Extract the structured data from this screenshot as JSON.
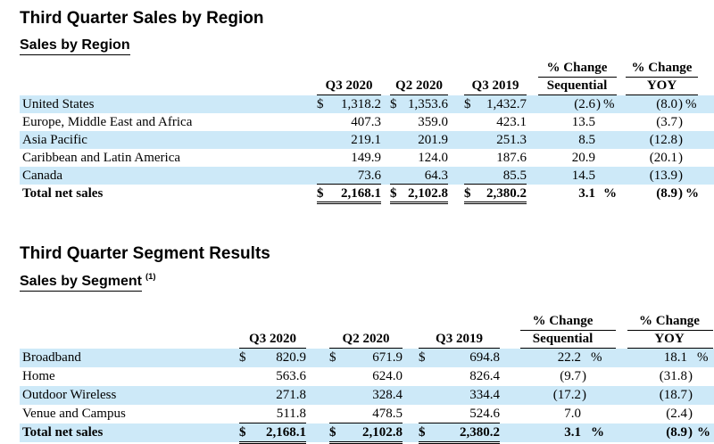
{
  "colors": {
    "stripe": "#cde9f8"
  },
  "sections": [
    {
      "title": "Third Quarter Sales by Region",
      "subtitle": "Sales by Region",
      "subtitle_note": "",
      "header": {
        "pct_change": "% Change",
        "q3_2020": "Q3 2020",
        "q2_2020": "Q2 2020",
        "q3_2019": "Q3 2019",
        "sequential": "Sequential",
        "yoy": "YOY"
      },
      "rows": [
        {
          "label": "United States",
          "stripe": true,
          "bold": false,
          "rule": "",
          "cells": [
            {
              "d": "$",
              "v": "1,318.2"
            },
            {
              "d": "$",
              "v": "1,353.6"
            },
            {
              "d": "$",
              "v": "1,432.7"
            }
          ],
          "seq": {
            "v": "(2.6",
            "p": ")",
            "s": "%"
          },
          "yoy": {
            "v": "(8.0",
            "p": ")",
            "s": "%"
          }
        },
        {
          "label": "Europe, Middle East and Africa",
          "stripe": false,
          "bold": false,
          "rule": "",
          "cells": [
            {
              "d": "",
              "v": "407.3"
            },
            {
              "d": "",
              "v": "359.0"
            },
            {
              "d": "",
              "v": "423.1"
            }
          ],
          "seq": {
            "v": "13.5",
            "p": "",
            "s": ""
          },
          "yoy": {
            "v": "(3.7",
            "p": ")",
            "s": ""
          }
        },
        {
          "label": "Asia Pacific",
          "stripe": true,
          "bold": false,
          "rule": "",
          "cells": [
            {
              "d": "",
              "v": "219.1"
            },
            {
              "d": "",
              "v": "201.9"
            },
            {
              "d": "",
              "v": "251.3"
            }
          ],
          "seq": {
            "v": "8.5",
            "p": "",
            "s": ""
          },
          "yoy": {
            "v": "(12.8",
            "p": ")",
            "s": ""
          }
        },
        {
          "label": "Caribbean and Latin America",
          "stripe": false,
          "bold": false,
          "rule": "",
          "cells": [
            {
              "d": "",
              "v": "149.9"
            },
            {
              "d": "",
              "v": "124.0"
            },
            {
              "d": "",
              "v": "187.6"
            }
          ],
          "seq": {
            "v": "20.9",
            "p": "",
            "s": ""
          },
          "yoy": {
            "v": "(20.1",
            "p": ")",
            "s": ""
          }
        },
        {
          "label": "Canada",
          "stripe": true,
          "bold": false,
          "rule": "single",
          "cells": [
            {
              "d": "",
              "v": "73.6"
            },
            {
              "d": "",
              "v": "64.3"
            },
            {
              "d": "",
              "v": "85.5"
            }
          ],
          "seq": {
            "v": "14.5",
            "p": "",
            "s": ""
          },
          "yoy": {
            "v": "(13.9",
            "p": ")",
            "s": ""
          }
        },
        {
          "label": "Total net sales",
          "stripe": false,
          "bold": true,
          "rule": "double",
          "cells": [
            {
              "d": "$",
              "v": "2,168.1"
            },
            {
              "d": "$",
              "v": "2,102.8"
            },
            {
              "d": "$",
              "v": "2,380.2"
            }
          ],
          "seq": {
            "v": "3.1",
            "p": "",
            "s": "%"
          },
          "yoy": {
            "v": "(8.9",
            "p": ")",
            "s": "%"
          }
        }
      ]
    },
    {
      "title": "Third Quarter Segment Results",
      "subtitle": "Sales by Segment",
      "subtitle_note": "(1)",
      "header": {
        "pct_change": "% Change",
        "q3_2020": "Q3 2020",
        "q2_2020": "Q2 2020",
        "q3_2019": "Q3 2019",
        "sequential": "Sequential",
        "yoy": "YOY"
      },
      "rows": [
        {
          "label": "Broadband",
          "stripe": true,
          "bold": false,
          "rule": "",
          "cells": [
            {
              "d": "$",
              "v": "820.9"
            },
            {
              "d": "$",
              "v": "671.9"
            },
            {
              "d": "$",
              "v": "694.8"
            }
          ],
          "seq": {
            "v": "22.2",
            "p": "",
            "s": "%"
          },
          "yoy": {
            "v": "18.1",
            "p": "",
            "s": "%"
          }
        },
        {
          "label": "Home",
          "stripe": false,
          "bold": false,
          "rule": "",
          "cells": [
            {
              "d": "",
              "v": "563.6"
            },
            {
              "d": "",
              "v": "624.0"
            },
            {
              "d": "",
              "v": "826.4"
            }
          ],
          "seq": {
            "v": "(9.7",
            "p": ")",
            "s": ""
          },
          "yoy": {
            "v": "(31.8",
            "p": ")",
            "s": ""
          }
        },
        {
          "label": "Outdoor Wireless",
          "stripe": true,
          "bold": false,
          "rule": "",
          "cells": [
            {
              "d": "",
              "v": "271.8"
            },
            {
              "d": "",
              "v": "328.4"
            },
            {
              "d": "",
              "v": "334.4"
            }
          ],
          "seq": {
            "v": "(17.2",
            "p": ")",
            "s": ""
          },
          "yoy": {
            "v": "(18.7",
            "p": ")",
            "s": ""
          }
        },
        {
          "label": "Venue and Campus",
          "stripe": false,
          "bold": false,
          "rule": "single",
          "cells": [
            {
              "d": "",
              "v": "511.8"
            },
            {
              "d": "",
              "v": "478.5"
            },
            {
              "d": "",
              "v": "524.6"
            }
          ],
          "seq": {
            "v": "7.0",
            "p": "",
            "s": ""
          },
          "yoy": {
            "v": "(2.4",
            "p": ")",
            "s": ""
          }
        },
        {
          "label": "Total net sales",
          "stripe": true,
          "bold": true,
          "rule": "double",
          "cells": [
            {
              "d": "$",
              "v": "2,168.1"
            },
            {
              "d": "$",
              "v": "2,102.8"
            },
            {
              "d": "$",
              "v": "2,380.2"
            }
          ],
          "seq": {
            "v": "3.1",
            "p": "",
            "s": "%"
          },
          "yoy": {
            "v": "(8.9",
            "p": ")",
            "s": "%"
          }
        }
      ]
    }
  ]
}
